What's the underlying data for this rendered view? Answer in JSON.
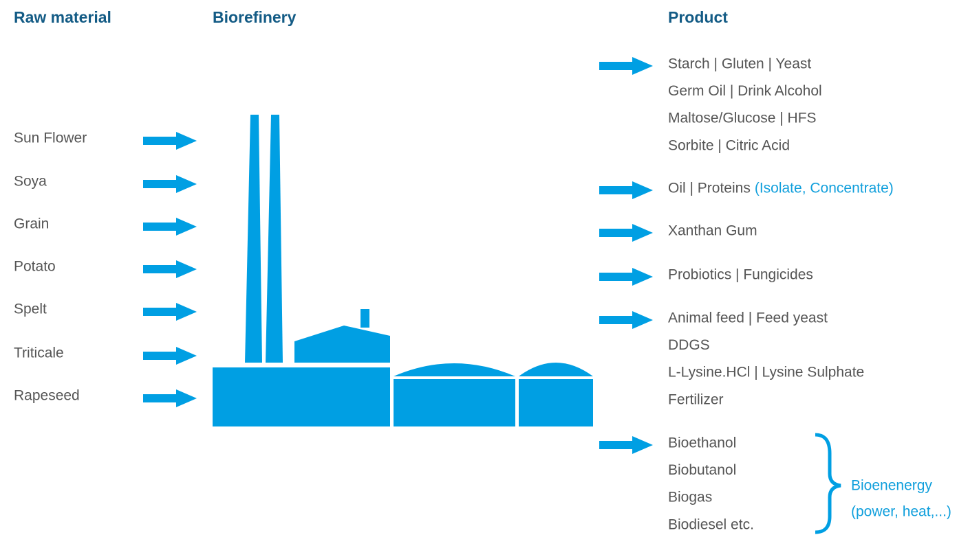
{
  "headers": {
    "raw_material": "Raw material",
    "biorefinery": "Biorefinery",
    "product": "Product"
  },
  "raw_materials": [
    "Sun Flower",
    "Soya",
    "Grain",
    "Potato",
    "Spelt",
    "Triticale",
    "Rapeseed"
  ],
  "product_groups": [
    {
      "lines": [
        "Starch | Gluten | Yeast",
        "Germ Oil | Drink Alcohol",
        "Maltose/Glucose | HFS",
        "Sorbite | Citric Acid"
      ]
    },
    {
      "lines": [
        "Oil | Proteins"
      ],
      "note": "(Isolate, Concentrate)"
    },
    {
      "lines": [
        "Xanthan Gum"
      ]
    },
    {
      "lines": [
        "Probiotics | Fungicides"
      ]
    },
    {
      "lines": [
        "Animal feed | Feed yeast",
        "DDGS",
        "L-Lysine.HCl | Lysine Sulphate",
        "Fertilizer"
      ]
    },
    {
      "lines": [
        "Bioethanol",
        "Biobutanol",
        "Biogas",
        "Biodiesel etc."
      ]
    }
  ],
  "bracket_label": [
    "Bioenenergy",
    "(power, heat,...)"
  ]
}
